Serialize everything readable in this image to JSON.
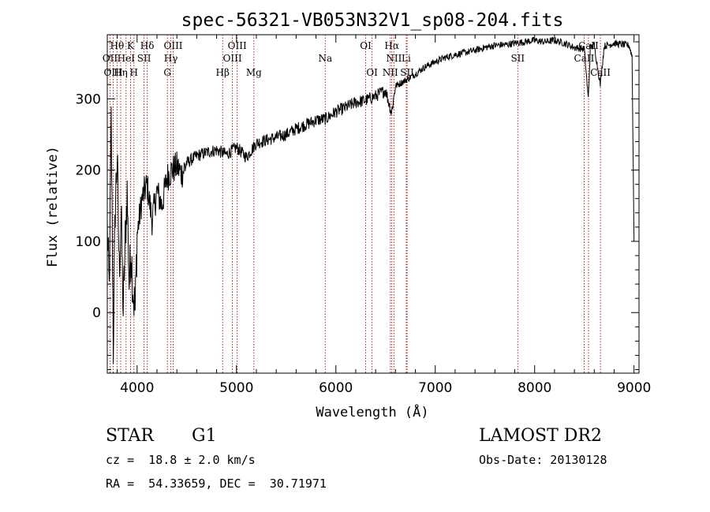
{
  "chart_data": {
    "type": "line",
    "title": "spec-56321-VB053N32V1_sp08-204.fits",
    "xlabel": "Wavelength (Å)",
    "ylabel": "Flux (relative)",
    "xlim": [
      3700,
      9050
    ],
    "ylim": [
      -85,
      390
    ],
    "x_ticks": [
      4000,
      5000,
      6000,
      7000,
      8000,
      9000
    ],
    "y_ticks": [
      0,
      100,
      200,
      300
    ],
    "grid": false,
    "line_color": "#000000",
    "marker_color": "#a01010",
    "series": [
      {
        "x": [
          3700,
          3720,
          3740,
          3760,
          3780,
          3800,
          3820,
          3840,
          3860,
          3880,
          3900,
          3920,
          3940,
          3960,
          3980,
          4000,
          4050,
          4100,
          4150,
          4200,
          4250,
          4300,
          4350,
          4400,
          4450,
          4500,
          4600,
          4700,
          4800,
          4900,
          5000,
          5100,
          5200,
          5300,
          5400,
          5500,
          5600,
          5700,
          5800,
          5900,
          6000,
          6100,
          6200,
          6300,
          6400,
          6500,
          6560,
          6600,
          6700,
          6800,
          6900,
          7000,
          7100,
          7200,
          7300,
          7400,
          7500,
          7600,
          7700,
          7800,
          7900,
          8000,
          8100,
          8200,
          8300,
          8400,
          8500,
          8540,
          8560,
          8600,
          8660,
          8700,
          8800,
          8900,
          8950,
          8980,
          9000
        ],
        "y": [
          120,
          30,
          270,
          -50,
          150,
          220,
          60,
          140,
          0,
          100,
          170,
          40,
          90,
          30,
          0,
          110,
          160,
          180,
          130,
          170,
          150,
          190,
          200,
          205,
          195,
          210,
          220,
          225,
          228,
          222,
          232,
          218,
          238,
          242,
          246,
          250,
          258,
          264,
          270,
          272,
          282,
          288,
          295,
          298,
          304,
          312,
          280,
          318,
          326,
          335,
          345,
          352,
          358,
          362,
          365,
          368,
          372,
          375,
          376,
          378,
          380,
          382,
          380,
          382,
          378,
          372,
          370,
          300,
          372,
          375,
          320,
          374,
          378,
          376,
          375,
          360,
          100
        ]
      }
    ],
    "line_markers": [
      {
        "label": "Hθ",
        "x": 3798,
        "row": 1
      },
      {
        "label": "K",
        "x": 3934,
        "row": 1
      },
      {
        "label": "Hδ",
        "x": 4102,
        "row": 1
      },
      {
        "label": "OIII",
        "x": 4363,
        "row": 1
      },
      {
        "label": "OIII",
        "x": 5007,
        "row": 1
      },
      {
        "label": "OI",
        "x": 6300,
        "row": 1
      },
      {
        "label": "Hα",
        "x": 6563,
        "row": 1
      },
      {
        "label": "SII",
        "x": 7830,
        "row": 2
      },
      {
        "label": "CaII",
        "x": 8542,
        "row": 1
      },
      {
        "label": "OII",
        "x": 3727,
        "row": 2
      },
      {
        "label": "HeI",
        "x": 3889,
        "row": 2
      },
      {
        "label": "SII",
        "x": 4070,
        "row": 2
      },
      {
        "label": "Hγ",
        "x": 4340,
        "row": 2
      },
      {
        "label": "OIII",
        "x": 4959,
        "row": 2
      },
      {
        "label": "Na",
        "x": 5893,
        "row": 2
      },
      {
        "label": "NII",
        "x": 6584,
        "row": 2
      },
      {
        "label": "Li",
        "x": 6708,
        "row": 2
      },
      {
        "label": "CaII",
        "x": 8498,
        "row": 2
      },
      {
        "label": "OIII",
        "x": 3760,
        "row": 3
      },
      {
        "label": "Hη",
        "x": 3835,
        "row": 3
      },
      {
        "label": "H",
        "x": 3968,
        "row": 3
      },
      {
        "label": "G",
        "x": 4305,
        "row": 3
      },
      {
        "label": "Hβ",
        "x": 4861,
        "row": 3
      },
      {
        "label": "Mg",
        "x": 5175,
        "row": 3
      },
      {
        "label": "OI",
        "x": 6364,
        "row": 3
      },
      {
        "label": "NII",
        "x": 6548,
        "row": 3
      },
      {
        "label": "SII",
        "x": 6717,
        "row": 3
      },
      {
        "label": "CaII",
        "x": 8662,
        "row": 3
      }
    ]
  },
  "info": {
    "object_class": "STAR",
    "subclass": "G1",
    "redshift": "cz =  18.8 ± 2.0 km/s",
    "coords": "RA =  54.33659, DEC =  30.71971",
    "survey": "LAMOST DR2",
    "obs_date": "Obs-Date: 20130128"
  }
}
